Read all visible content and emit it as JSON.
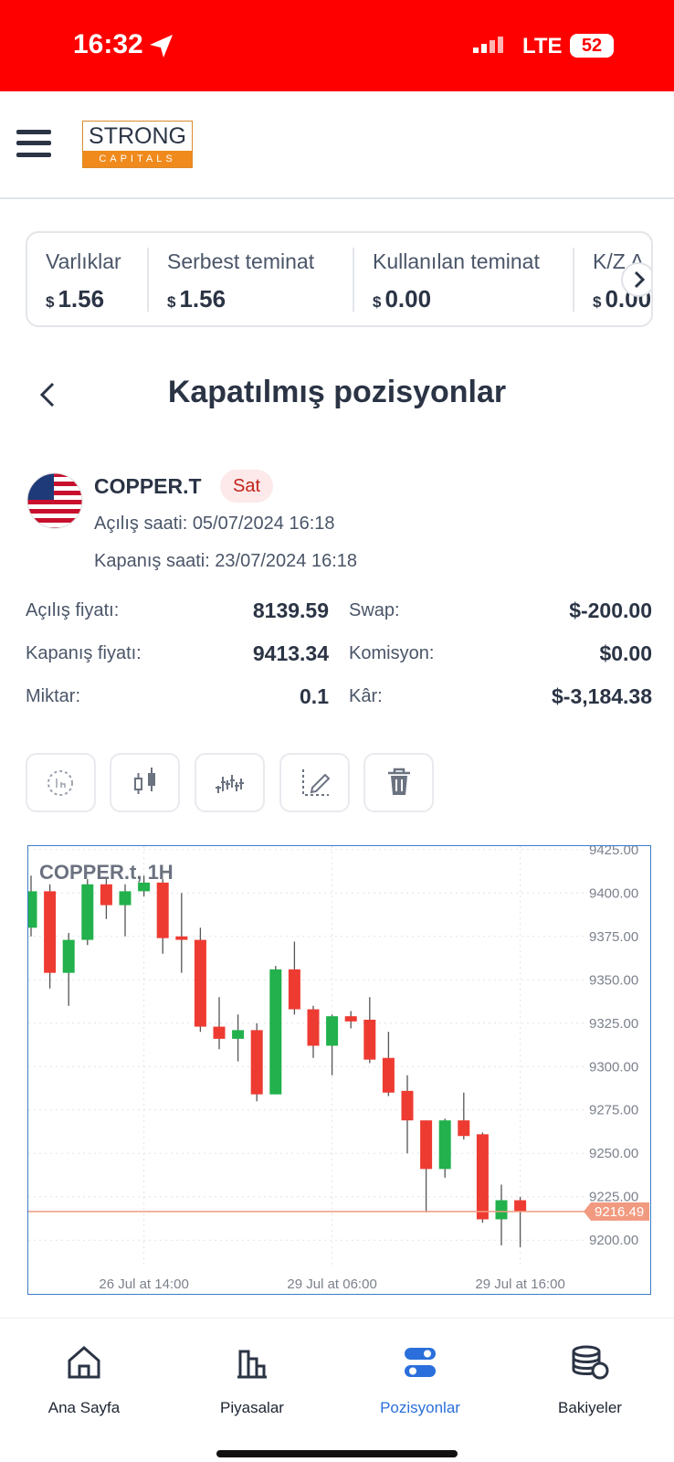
{
  "status_bar": {
    "time": "16:32",
    "network": "LTE",
    "battery": "52"
  },
  "header": {
    "logo_top": "STRONG",
    "logo_bottom": "CAPITALS"
  },
  "summary": [
    {
      "label": "Varlıklar",
      "currency": "$",
      "value": "1.56"
    },
    {
      "label": "Serbest teminat",
      "currency": "$",
      "value": "1.56"
    },
    {
      "label": "Kullanılan teminat",
      "currency": "$",
      "value": "0.00"
    },
    {
      "label": "K/Z A",
      "currency": "$",
      "value": "0.00"
    }
  ],
  "page_title": "Kapatılmış pozisyonlar",
  "position": {
    "symbol": "COPPER.T",
    "side": "Sat",
    "open_time": "Açılış saati: 05/07/2024 16:18",
    "close_time": "Kapanış saati: 23/07/2024 16:18"
  },
  "details": [
    {
      "label": "Açılış fiyatı:",
      "value": "8139.59"
    },
    {
      "label": "Swap:",
      "value": "$-200.00"
    },
    {
      "label": "Kapanış fiyatı:",
      "value": "9413.34"
    },
    {
      "label": "Komisyon:",
      "value": "$0.00"
    },
    {
      "label": "Miktar:",
      "value": "0.1"
    },
    {
      "label": "Kâr:",
      "value": "$-3,184.38"
    }
  ],
  "chart_data": {
    "type": "candlestick",
    "title": "COPPER.t, 1H",
    "categories": [
      null,
      null,
      null,
      null,
      null,
      null,
      "26 Jul at 14:00",
      null,
      null,
      null,
      null,
      null,
      null,
      null,
      null,
      null,
      "29 Jul at 06:00",
      null,
      null,
      null,
      null,
      null,
      null,
      null,
      null,
      null,
      "29 Jul at 16:00"
    ],
    "open": [
      9380,
      9401,
      9354,
      9373,
      9405,
      9393,
      9401,
      9406,
      9375,
      9373,
      9323,
      9316,
      9321,
      9284,
      9356,
      9333,
      9312,
      9329,
      9327,
      9305,
      9286,
      9269,
      9241,
      9269,
      9261,
      9212,
      9223
    ],
    "high": [
      9410,
      9405,
      9377,
      9408,
      9408,
      9405,
      9410,
      9408,
      9400,
      9380,
      9340,
      9330,
      9325,
      9358,
      9372,
      9335,
      9330,
      9332,
      9340,
      9320,
      9295,
      9269,
      9270,
      9285,
      9262,
      9232,
      9225
    ],
    "low": [
      9375,
      9345,
      9335,
      9370,
      9385,
      9375,
      9398,
      9365,
      9354,
      9320,
      9310,
      9303,
      9280,
      9284,
      9330,
      9305,
      9295,
      9322,
      9302,
      9283,
      9250,
      9216,
      9236,
      9258,
      9210,
      9197,
      9196
    ],
    "close": [
      9401,
      9354,
      9373,
      9405,
      9393,
      9401,
      9406,
      9374,
      9373,
      9323,
      9316,
      9321,
      9284,
      9356,
      9333,
      9312,
      9329,
      9326,
      9304,
      9285,
      9269,
      9241,
      9269,
      9260,
      9212,
      9223,
      9216.49
    ],
    "up_color": "#22b14c",
    "down_color": "#ee3b32",
    "ylim": [
      9168,
      9427
    ],
    "yticks": [
      {
        "value": 9200,
        "label": "9200.00"
      },
      {
        "value": 9225,
        "label": "9225.00"
      },
      {
        "value": 9250,
        "label": "9250.00"
      },
      {
        "value": 9275,
        "label": "9275.00"
      },
      {
        "value": 9300,
        "label": "9300.00"
      },
      {
        "value": 9325,
        "label": "9325.00"
      },
      {
        "value": 9350,
        "label": "9350.00"
      },
      {
        "value": 9375,
        "label": "9375.00"
      },
      {
        "value": 9400,
        "label": "9400.00"
      },
      {
        "value": 9425,
        "label": "9425.00"
      }
    ],
    "grid": true,
    "last_price": 9216.49,
    "last_price_color": "#f19a80"
  },
  "nav": [
    {
      "label": "Ana Sayfa"
    },
    {
      "label": "Piyasalar"
    },
    {
      "label": "Pozisyonlar",
      "active": true
    },
    {
      "label": "Bakiyeler"
    }
  ]
}
